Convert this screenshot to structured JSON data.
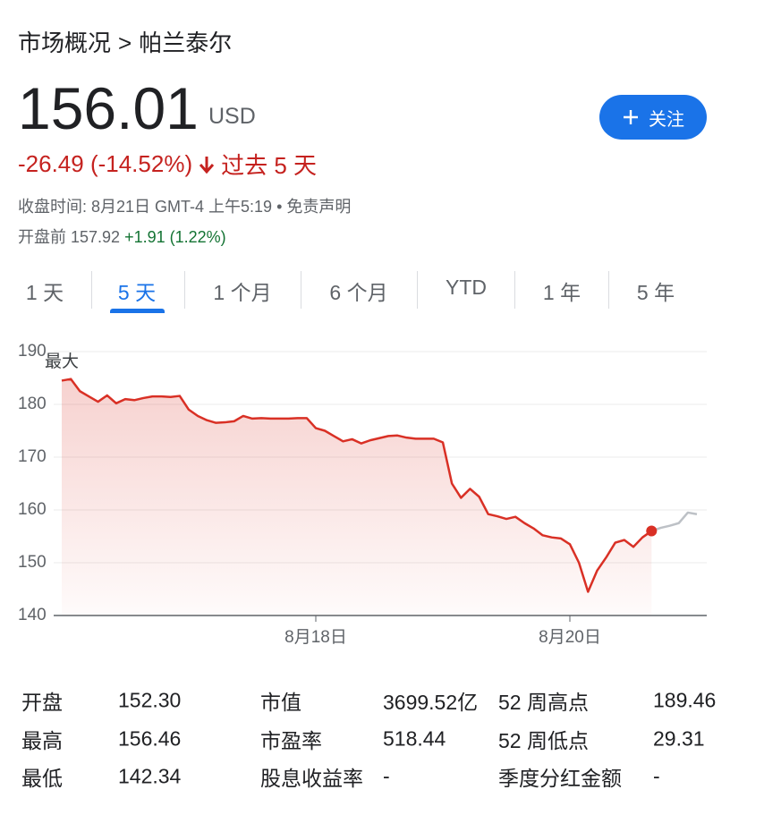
{
  "breadcrumb": {
    "parent": "市场概况",
    "separator": ">",
    "current": "帕兰泰尔"
  },
  "quote": {
    "price": "156.01",
    "currency": "USD",
    "change": "-26.49 (-14.52%)",
    "period": "过去 5 天",
    "follow_button": "关注"
  },
  "close_info": {
    "text": "收盘时间: 8月21日 GMT-4 上午5:19",
    "bullet": "•",
    "disclaimer": "免责声明"
  },
  "premarket": {
    "label": "开盘前",
    "price": "157.92",
    "change": "+1.91 (1.22%)"
  },
  "tabs": {
    "items": [
      "1 天",
      "5 天",
      "1 个月",
      "6 个月",
      "YTD",
      "1 年",
      "5 年"
    ],
    "selected": 1
  },
  "chart_data": {
    "type": "line",
    "annotation": "最大",
    "categories": [
      null,
      null,
      null,
      null,
      null,
      null,
      null,
      null,
      null,
      null,
      null,
      null,
      null,
      null,
      null,
      null,
      null,
      null,
      null,
      null,
      null,
      null,
      null,
      null,
      null,
      null,
      null,
      null,
      "8月18日",
      null,
      null,
      null,
      null,
      null,
      null,
      null,
      null,
      null,
      null,
      null,
      null,
      null,
      null,
      null,
      null,
      null,
      null,
      null,
      null,
      null,
      null,
      null,
      null,
      null,
      null,
      null,
      "8月20日",
      null,
      null,
      null,
      null,
      null,
      null,
      null,
      null,
      null,
      null,
      null,
      null,
      null,
      null
    ],
    "series": [
      {
        "color": "#d93025",
        "values": [
          184.5,
          184.8,
          182.5,
          181.5,
          180.5,
          181.7,
          180.2,
          181.0,
          180.8,
          181.2,
          181.5,
          181.5,
          181.4,
          181.6,
          179.0,
          177.8,
          177.0,
          176.5,
          176.6,
          176.8,
          177.8,
          177.3,
          177.4,
          177.3,
          177.3,
          177.3,
          177.4,
          177.4,
          175.5,
          175.0,
          174.0,
          173.0,
          173.4,
          172.6,
          173.2,
          173.6,
          174.0,
          174.1,
          173.7,
          173.5,
          173.5,
          173.5,
          172.8,
          165.0,
          162.3,
          164.0,
          162.5,
          159.2,
          158.8,
          158.3,
          158.7,
          157.5,
          156.5,
          155.2,
          154.8,
          154.6,
          153.5,
          150.0,
          144.5,
          148.5,
          151.0,
          153.8,
          154.3,
          153.0,
          154.8,
          156.01,
          null,
          null,
          null,
          null,
          null
        ]
      },
      {
        "color": "#bdc1c6",
        "values": [
          null,
          null,
          null,
          null,
          null,
          null,
          null,
          null,
          null,
          null,
          null,
          null,
          null,
          null,
          null,
          null,
          null,
          null,
          null,
          null,
          null,
          null,
          null,
          null,
          null,
          null,
          null,
          null,
          null,
          null,
          null,
          null,
          null,
          null,
          null,
          null,
          null,
          null,
          null,
          null,
          null,
          null,
          null,
          null,
          null,
          null,
          null,
          null,
          null,
          null,
          null,
          null,
          null,
          null,
          null,
          null,
          null,
          null,
          null,
          null,
          null,
          null,
          null,
          null,
          null,
          156.01,
          156.6,
          157.0,
          157.5,
          159.5,
          159.2
        ]
      }
    ],
    "ylim": [
      140,
      190
    ],
    "yticks": [
      140,
      150,
      160,
      170,
      180,
      190
    ],
    "grid": true
  },
  "stats": {
    "rows": [
      [
        "开盘",
        "152.30",
        "市值",
        "3699.52亿",
        "52 周高点",
        "189.46"
      ],
      [
        "最高",
        "156.46",
        "市盈率",
        "518.44",
        "52 周低点",
        "29.31"
      ],
      [
        "最低",
        "142.34",
        "股息收益率",
        "-",
        "季度分红金额",
        "-"
      ]
    ]
  }
}
